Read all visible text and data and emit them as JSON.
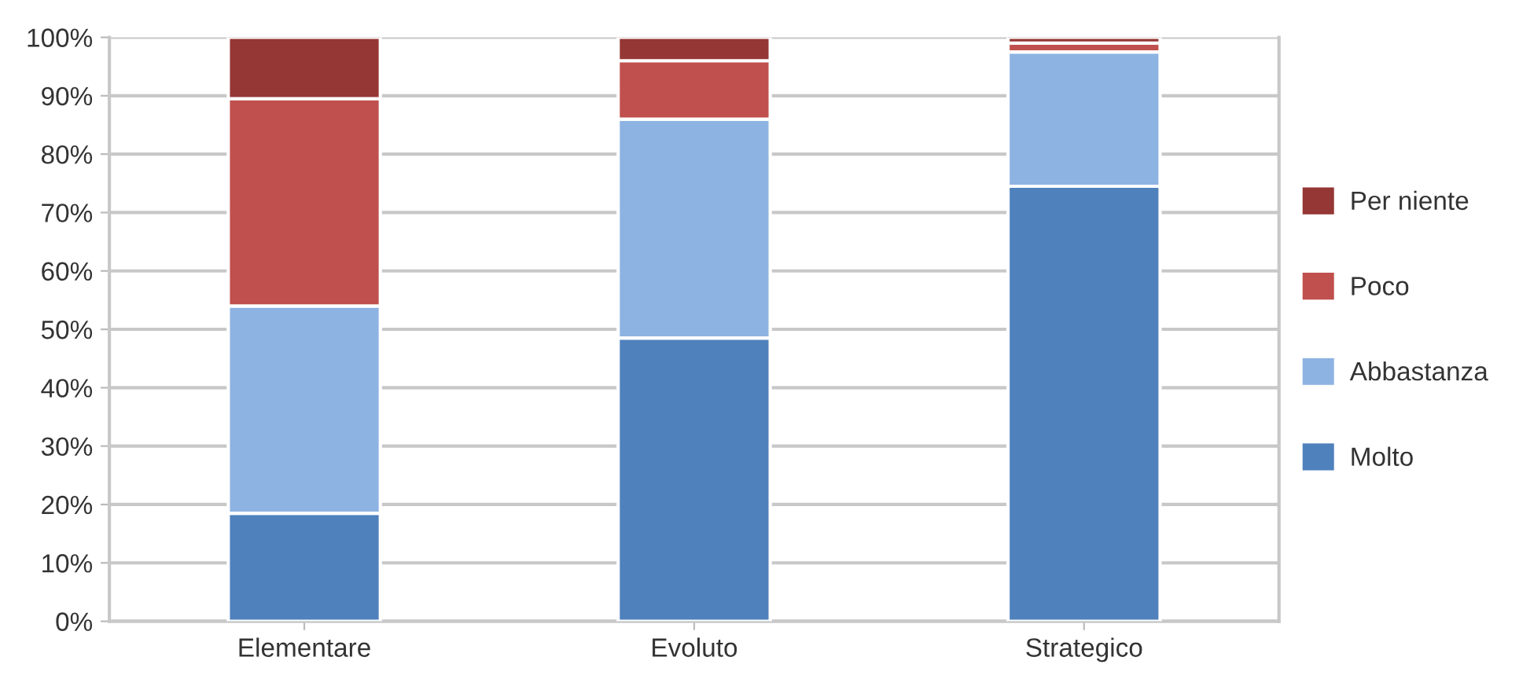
{
  "chart_data": {
    "type": "bar",
    "stacked": true,
    "categories": [
      "Elementare",
      "Evoluto",
      "Strategico"
    ],
    "series": [
      {
        "name": "Molto",
        "color": "#4f81bd",
        "values": [
          18.5,
          48.5,
          74.5
        ]
      },
      {
        "name": "Abbastanza",
        "color": "#8db3e2",
        "values": [
          35.5,
          37.5,
          23
        ]
      },
      {
        "name": "Poco",
        "color": "#c0504d",
        "values": [
          35.5,
          10,
          1.5
        ]
      },
      {
        "name": "Per niente",
        "color": "#953735",
        "values": [
          10.5,
          4,
          1
        ]
      }
    ],
    "ylim": [
      0,
      100
    ],
    "yticks": [
      {
        "value": 0,
        "label": "0%"
      },
      {
        "value": 10,
        "label": "10%"
      },
      {
        "value": 20,
        "label": "20%"
      },
      {
        "value": 30,
        "label": "30%"
      },
      {
        "value": 40,
        "label": "40%"
      },
      {
        "value": 50,
        "label": "50%"
      },
      {
        "value": 60,
        "label": "60%"
      },
      {
        "value": 70,
        "label": "70%"
      },
      {
        "value": 80,
        "label": "80%"
      },
      {
        "value": 90,
        "label": "90%"
      },
      {
        "value": 100,
        "label": "100%"
      }
    ],
    "grid": "y",
    "legend": "right"
  }
}
